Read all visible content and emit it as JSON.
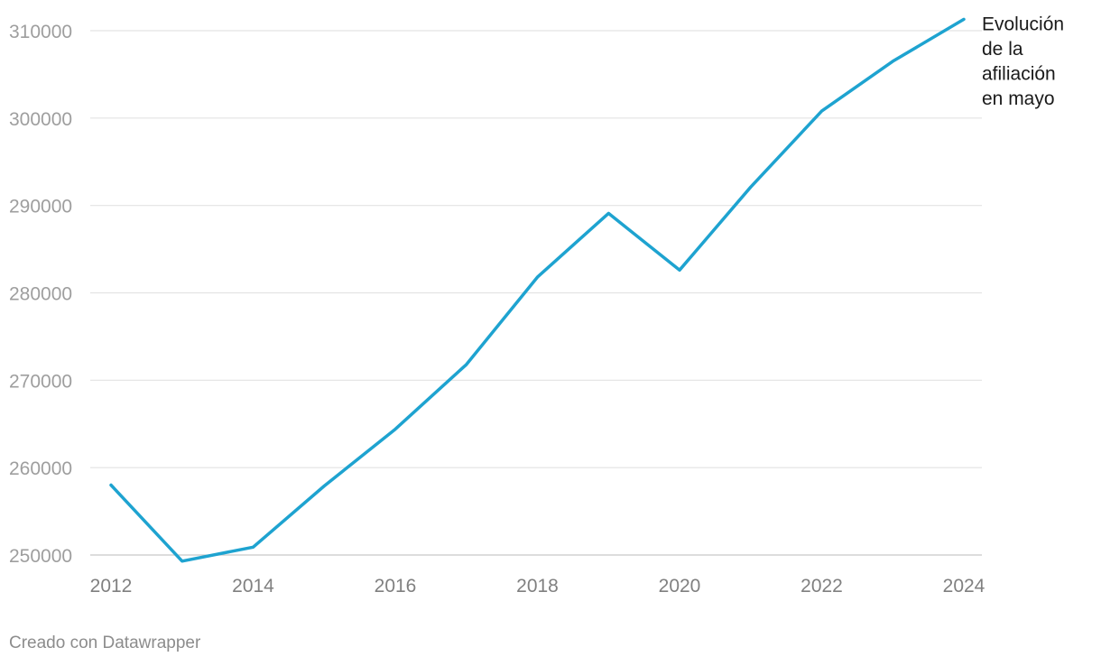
{
  "chart_data": {
    "type": "line",
    "title": "",
    "xlabel": "",
    "ylabel": "",
    "x": [
      2012,
      2013,
      2014,
      2015,
      2016,
      2017,
      2018,
      2019,
      2020,
      2021,
      2022,
      2023,
      2024
    ],
    "x_ticks": [
      "2012",
      "2014",
      "2016",
      "2018",
      "2020",
      "2022",
      "2024"
    ],
    "y_ticks": [
      "250000",
      "260000",
      "270000",
      "280000",
      "290000",
      "300000",
      "310000"
    ],
    "xlim": [
      2012,
      2024
    ],
    "ylim": [
      250000,
      310000
    ],
    "grid": "horizontal",
    "series": [
      {
        "name": "Evolución de la afiliación en mayo",
        "label_lines": [
          "Evolución",
          "de la",
          "afiliación",
          "en mayo"
        ],
        "color": "#1ea3d0",
        "values": [
          258000,
          249300,
          250900,
          257900,
          264400,
          271800,
          281800,
          289100,
          282600,
          292100,
          300800,
          306500,
          311300
        ]
      }
    ]
  },
  "footer": {
    "credit": "Creado con Datawrapper"
  }
}
